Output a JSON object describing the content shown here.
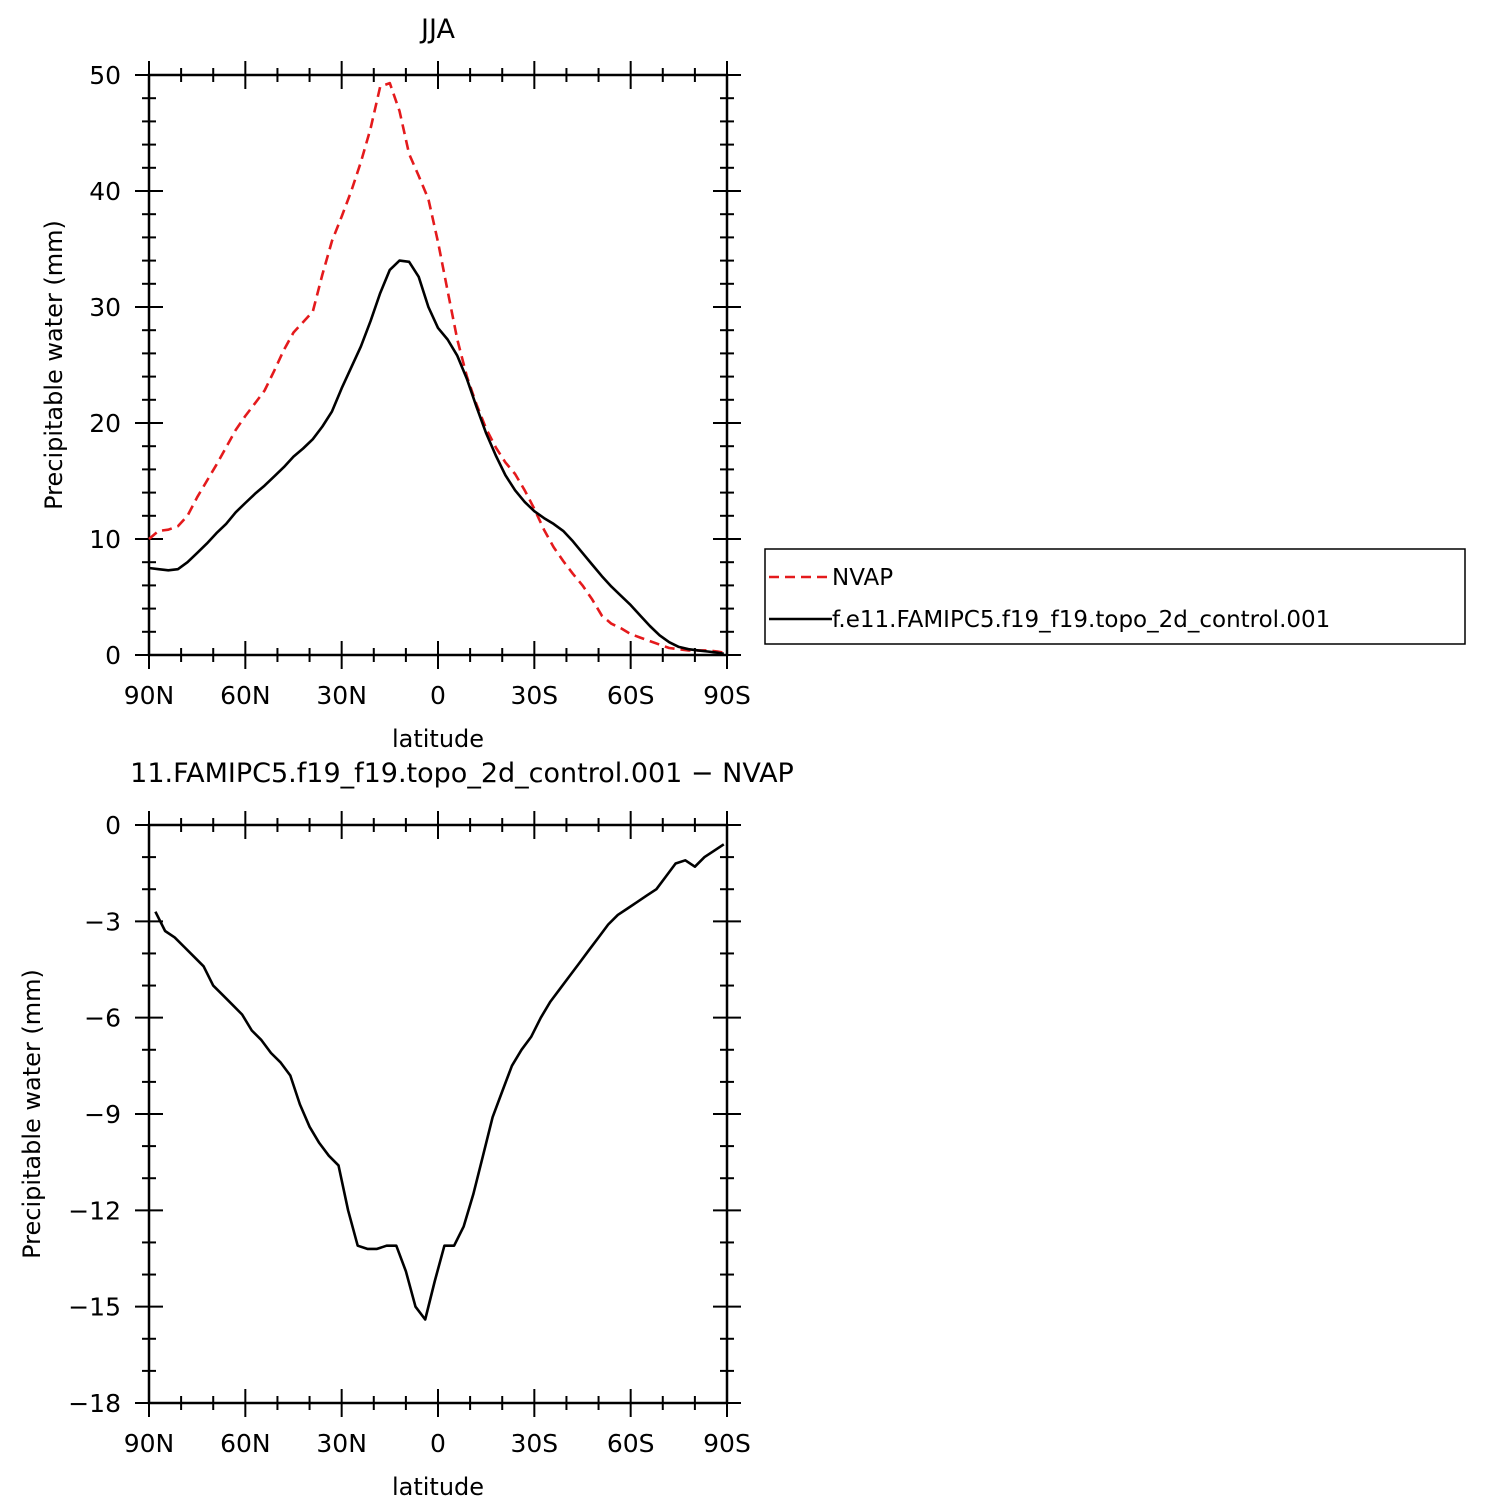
{
  "chart_data": [
    {
      "type": "line",
      "title": "JJA",
      "xlabel": "latitude",
      "ylabel": "Precipitable water (mm)",
      "xlim": [
        90,
        -90
      ],
      "ylim": [
        0,
        50
      ],
      "xticks": [
        90,
        60,
        30,
        0,
        -30,
        -60,
        -90
      ],
      "xtick_labels": [
        "90N",
        "60N",
        "30N",
        "0",
        "30S",
        "60S",
        "90S"
      ],
      "yticks": [
        0,
        10,
        20,
        30,
        40,
        50
      ],
      "ytick_labels": [
        "0",
        "10",
        "20",
        "30",
        "40",
        "50"
      ],
      "grid": false,
      "legend_position": "right",
      "series": [
        {
          "name": "NVAP",
          "color": "#e41a1c",
          "style": "dashed",
          "x": [
            90,
            87,
            84,
            81,
            78,
            75,
            72,
            69,
            66,
            63,
            60,
            57,
            54,
            51,
            48,
            45,
            42,
            39,
            36,
            33,
            30,
            27,
            24,
            21,
            18,
            15,
            12,
            9,
            6,
            3,
            0,
            -3,
            -6,
            -9,
            -12,
            -15,
            -18,
            -21,
            -24,
            -27,
            -30,
            -33,
            -36,
            -39,
            -42,
            -45,
            -48,
            -51,
            -54,
            -57,
            -60,
            -63,
            -66,
            -69,
            -72,
            -75,
            -78,
            -81,
            -84,
            -87,
            -89
          ],
          "y": [
            10.0,
            10.7,
            10.8,
            11.1,
            12.0,
            13.6,
            15.0,
            16.4,
            17.9,
            19.4,
            20.6,
            21.7,
            22.8,
            24.5,
            26.3,
            27.8,
            28.7,
            29.6,
            32.8,
            35.7,
            37.8,
            40.0,
            42.5,
            45.4,
            49.0,
            49.3,
            46.9,
            43.2,
            41.3,
            39.3,
            35.6,
            31.4,
            27.2,
            24.0,
            21.6,
            19.5,
            17.9,
            16.6,
            15.6,
            14.2,
            12.6,
            10.8,
            9.3,
            8.1,
            7.0,
            6.0,
            4.8,
            3.4,
            2.7,
            2.3,
            1.8,
            1.5,
            1.2,
            0.9,
            0.6,
            0.5,
            0.4,
            0.4,
            0.4,
            0.3,
            0.2
          ],
          "x_note": ""
        },
        {
          "name": "f.e11.FAMIPC5.f19_f19.topo_2d_control.001",
          "color": "#000000",
          "style": "solid",
          "x": [
            90,
            87,
            84,
            81,
            78,
            75,
            72,
            69,
            66,
            63,
            60,
            57,
            54,
            51,
            48,
            45,
            42,
            39,
            36,
            33,
            30,
            27,
            24,
            21,
            18,
            15,
            12,
            9,
            6,
            3,
            0,
            -3,
            -6,
            -9,
            -12,
            -15,
            -18,
            -21,
            -24,
            -27,
            -30,
            -33,
            -36,
            -39,
            -42,
            -45,
            -48,
            -51,
            -54,
            -57,
            -60,
            -63,
            -66,
            -69,
            -72,
            -75,
            -78,
            -81,
            -84,
            -87,
            -89
          ],
          "y": [
            7.5,
            7.4,
            7.3,
            7.4,
            8.0,
            8.8,
            9.6,
            10.5,
            11.3,
            12.3,
            13.1,
            13.9,
            14.6,
            15.4,
            16.2,
            17.1,
            17.8,
            18.6,
            19.7,
            21.0,
            23.0,
            24.8,
            26.6,
            28.8,
            31.2,
            33.2,
            34.0,
            33.9,
            32.6,
            30.0,
            28.2,
            27.2,
            25.8,
            23.8,
            21.4,
            19.1,
            17.2,
            15.5,
            14.2,
            13.2,
            12.4,
            11.8,
            11.3,
            10.7,
            9.8,
            8.8,
            7.8,
            6.8,
            5.9,
            5.1,
            4.3,
            3.4,
            2.5,
            1.7,
            1.1,
            0.7,
            0.5,
            0.4,
            0.3,
            0.2,
            0.1
          ]
        }
      ]
    },
    {
      "type": "line",
      "title": "11.FAMIPC5.f19_f19.topo_2d_control.001 − NVAP",
      "xlabel": "latitude",
      "ylabel": "Precipitable water (mm)",
      "xlim": [
        90,
        -90
      ],
      "ylim": [
        -18,
        0
      ],
      "xticks": [
        90,
        60,
        30,
        0,
        -30,
        -60,
        -90
      ],
      "xtick_labels": [
        "90N",
        "60N",
        "30N",
        "0",
        "30S",
        "60S",
        "90S"
      ],
      "yticks": [
        0,
        -3,
        -6,
        -9,
        -12,
        -15,
        -18
      ],
      "ytick_labels": [
        "0",
        "−3",
        "−6",
        "−9",
        "−12",
        "−15",
        "−18"
      ],
      "grid": false,
      "series": [
        {
          "color": "#000000",
          "style": "solid",
          "x": [
            88,
            85,
            82,
            79,
            76,
            73,
            70,
            67,
            64,
            61,
            58,
            55,
            52,
            49,
            46,
            43,
            40,
            37,
            34,
            31,
            28,
            25,
            22,
            19,
            16,
            13,
            10,
            7,
            4,
            1,
            -2,
            -5,
            -8,
            -11,
            -14,
            -17,
            -20,
            -23,
            -26,
            -29,
            -32,
            -35,
            -38,
            -41,
            -44,
            -47,
            -50,
            -53,
            -56,
            -59,
            -62,
            -65,
            -68,
            -71,
            -74,
            -77,
            -80,
            -83,
            -86,
            -89
          ],
          "y": [
            -2.7,
            -3.3,
            -3.5,
            -3.8,
            -4.1,
            -4.4,
            -5.0,
            -5.3,
            -5.6,
            -5.9,
            -6.4,
            -6.7,
            -7.1,
            -7.4,
            -7.8,
            -8.7,
            -9.4,
            -9.9,
            -10.3,
            -10.6,
            -12.0,
            -13.1,
            -13.2,
            -13.2,
            -13.1,
            -13.1,
            -13.9,
            -15.0,
            -15.4,
            -14.2,
            -13.1,
            -13.1,
            -12.5,
            -11.5,
            -10.3,
            -9.1,
            -8.3,
            -7.5,
            -7.0,
            -6.6,
            -6.0,
            -5.5,
            -5.1,
            -4.7,
            -4.3,
            -3.9,
            -3.5,
            -3.1,
            -2.8,
            -2.6,
            -2.4,
            -2.2,
            -2.0,
            -1.6,
            -1.2,
            -1.1,
            -1.3,
            -1.0,
            -0.8,
            -0.6
          ]
        }
      ]
    }
  ]
}
